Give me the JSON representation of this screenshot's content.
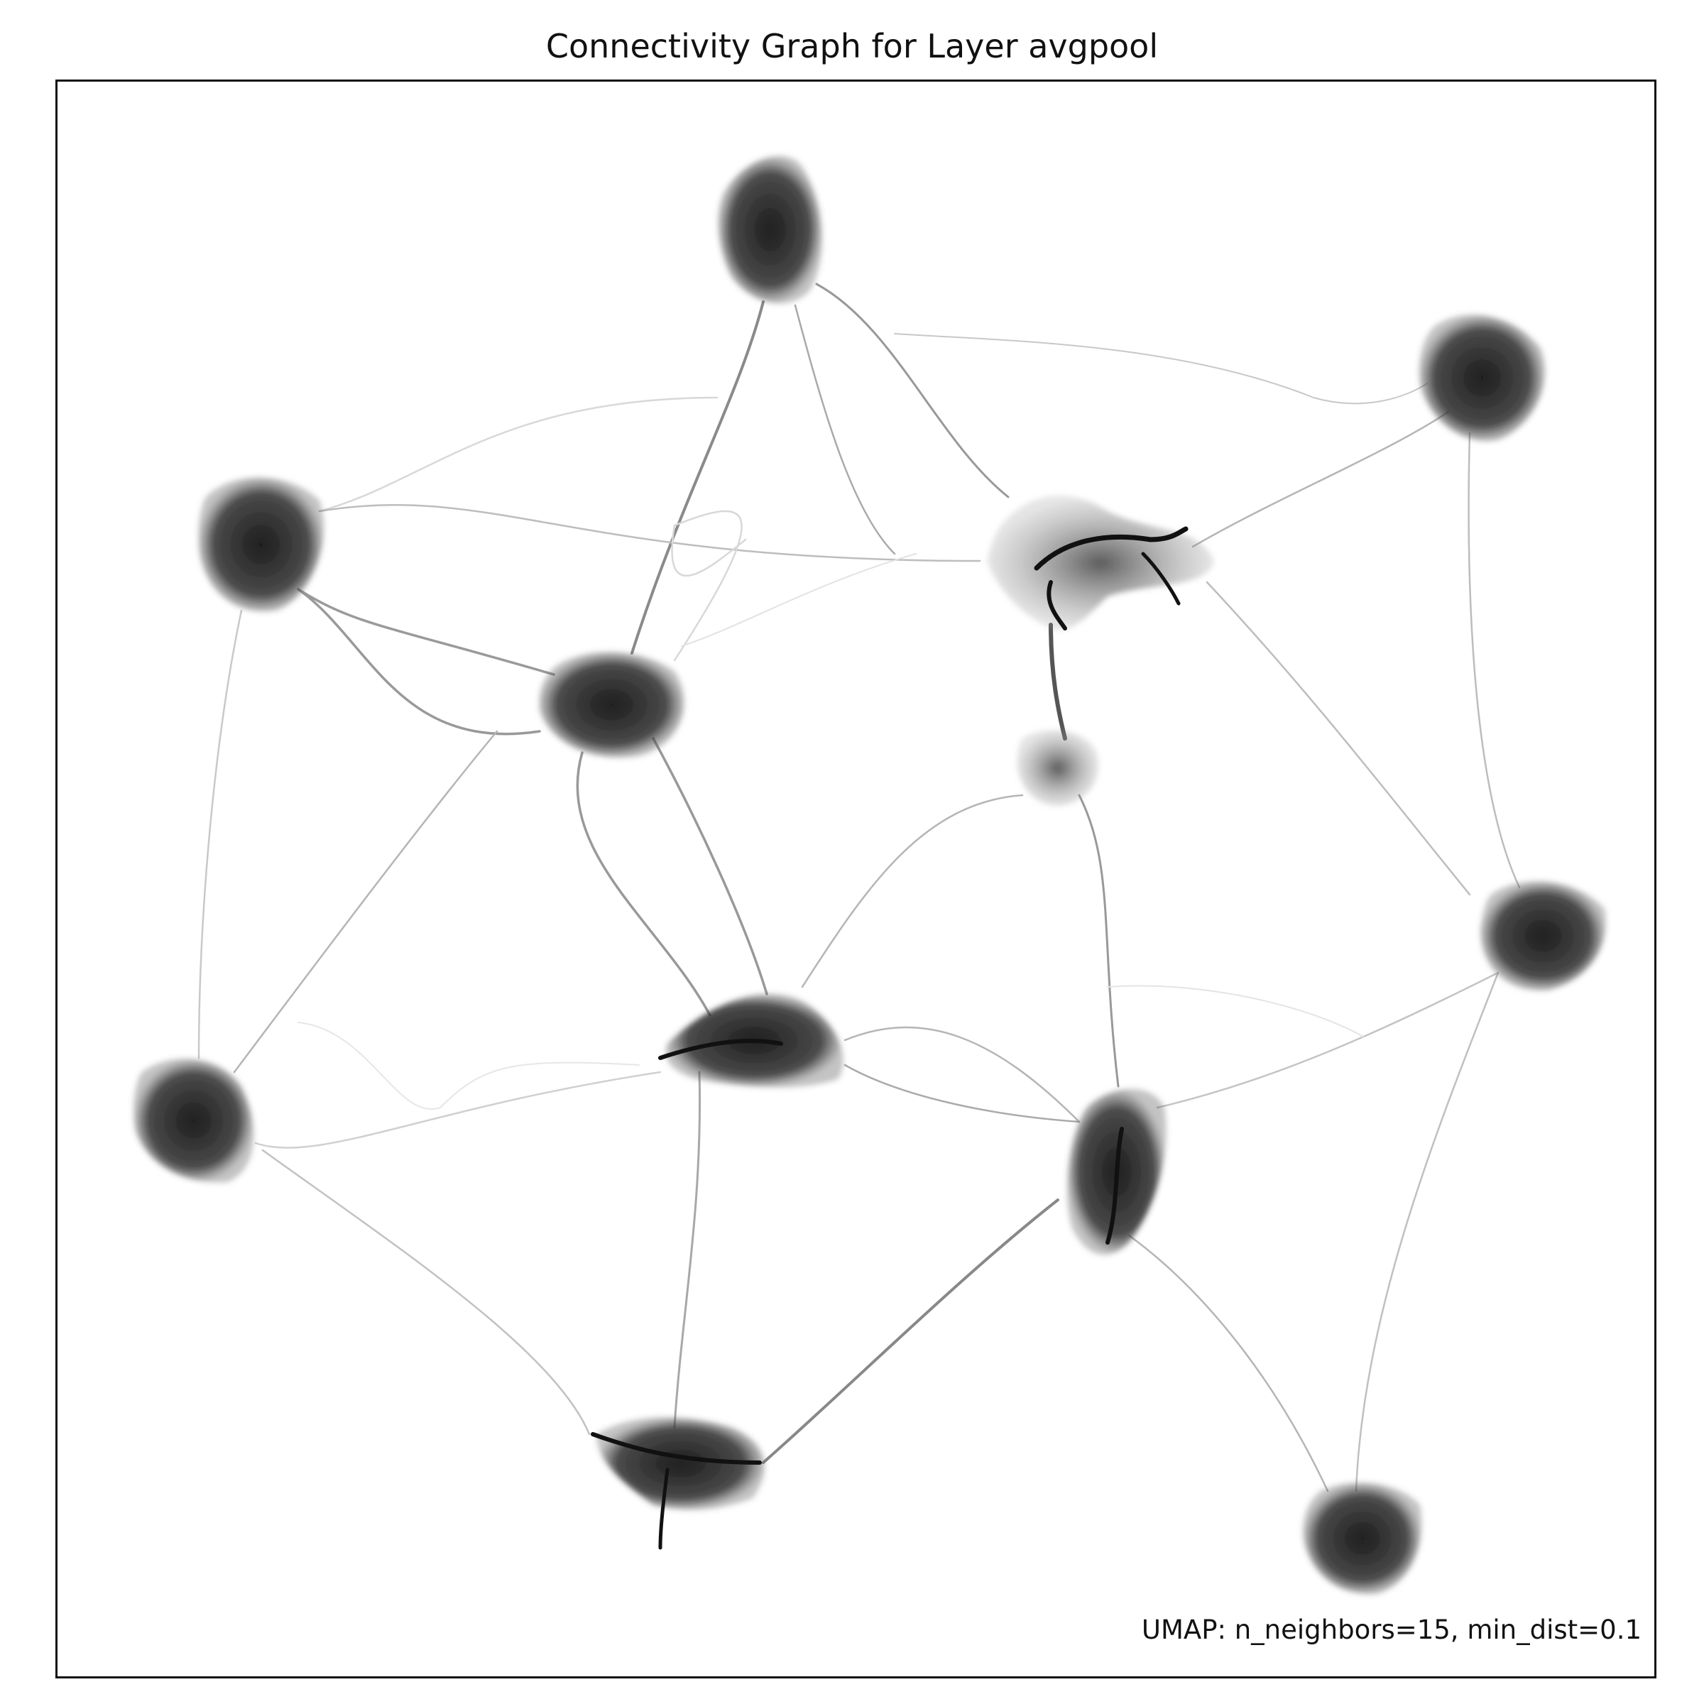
{
  "chart": {
    "title": "Connectivity Graph for Layer avgpool",
    "annotation": "UMAP: n_neighbors=15, min_dist=0.1",
    "type": "connectivity-graph",
    "grid": false,
    "colors": {
      "edge": "#9a9a9a",
      "cluster": "#1a1a1a",
      "frame": "#111111"
    }
  }
}
